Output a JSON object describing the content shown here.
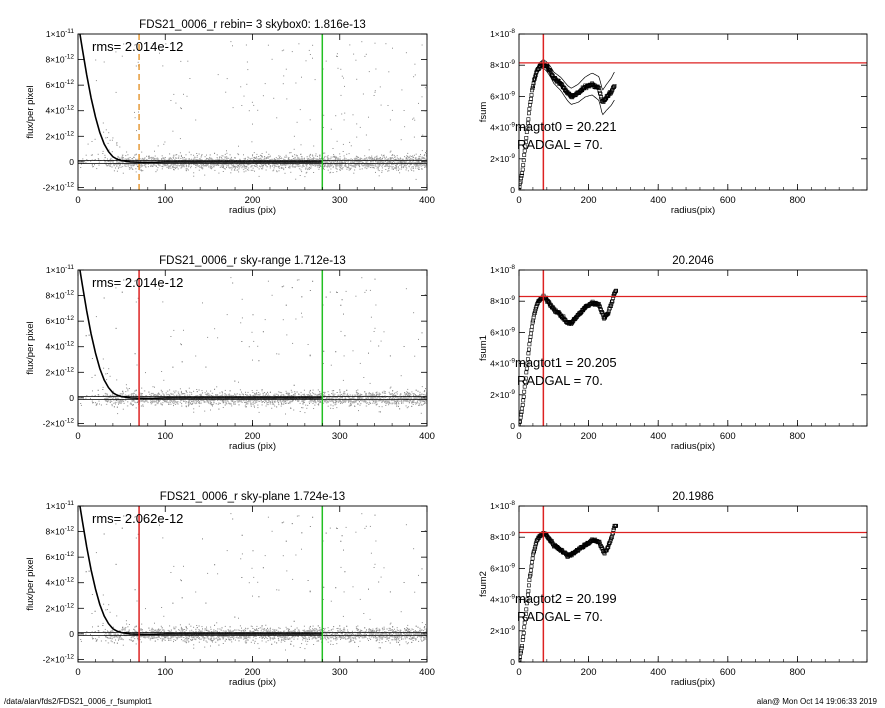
{
  "footer": {
    "path": "/data/alan/fds2/FDS21_0006_r_fsumplot1",
    "stamp": "alan@  Mon Oct 14 19:06:33 2019"
  },
  "chart_data": [
    {
      "id": "profile-1",
      "type": "scatter",
      "title": "FDS21_0006_r rebin= 3    skybox0:  1.816e-13",
      "xlabel": "radius (pix)",
      "ylabel": "flux/per pixel",
      "xlim": [
        0,
        400
      ],
      "ylim": [
        -2.2e-12,
        1e-11
      ],
      "xticks": [
        0,
        100,
        200,
        300,
        400
      ],
      "yticks": [
        {
          "v": 1e-11,
          "m": "1×10",
          "e": "-11"
        },
        {
          "v": 8e-12,
          "m": "8×10",
          "e": "-12"
        },
        {
          "v": 6e-12,
          "m": "6×10",
          "e": "-12"
        },
        {
          "v": 4e-12,
          "m": "4×10",
          "e": "-12"
        },
        {
          "v": 2e-12,
          "m": "2×10",
          "e": "-12"
        },
        {
          "v": 0,
          "m": "0",
          "e": ""
        },
        {
          "v": -2e-12,
          "m": "-2×10",
          "e": "-12"
        }
      ],
      "annotation": "rms= 2.014e-12",
      "marker_line": {
        "x": 70,
        "color": "#e69b3a",
        "style": "dashed"
      },
      "outer_line": {
        "x": 280,
        "color": "#22c022"
      },
      "profile": [
        [
          1,
          1.05e-11
        ],
        [
          5,
          8.8e-12
        ],
        [
          10,
          6.8e-12
        ],
        [
          15,
          5e-12
        ],
        [
          20,
          3.5e-12
        ],
        [
          25,
          2.3e-12
        ],
        [
          30,
          1.4e-12
        ],
        [
          35,
          8e-13
        ],
        [
          40,
          4e-13
        ],
        [
          45,
          2e-13
        ],
        [
          50,
          1e-13
        ],
        [
          60,
          0
        ],
        [
          80,
          -5e-14
        ],
        [
          100,
          0
        ],
        [
          150,
          0
        ],
        [
          200,
          0
        ],
        [
          250,
          0
        ],
        [
          280,
          0
        ]
      ],
      "sky_level": 1.816e-13
    },
    {
      "id": "fsum-0",
      "type": "scatter",
      "title": "",
      "xlabel": "radius(pix)",
      "ylabel": "fsum",
      "xlim": [
        0,
        1000
      ],
      "ylim": [
        0,
        1e-08
      ],
      "xticks": [
        0,
        200,
        400,
        600,
        800
      ],
      "yticks": [
        {
          "v": 1e-08,
          "m": "1×10",
          "e": "-8"
        },
        {
          "v": 8e-09,
          "m": "8×10",
          "e": "-9"
        },
        {
          "v": 6e-09,
          "m": "6×10",
          "e": "-9"
        },
        {
          "v": 4e-09,
          "m": "4×10",
          "e": "-9"
        },
        {
          "v": 2e-09,
          "m": "2×10",
          "e": "-9"
        },
        {
          "v": 0,
          "m": "0",
          "e": ""
        }
      ],
      "annotations": [
        "magtot0 =  20.221",
        "RADGAL =     70."
      ],
      "vline": {
        "x": 70,
        "color": "#dd2222"
      },
      "hline": {
        "y": 8.15e-09,
        "color": "#dd2222"
      },
      "curve": [
        [
          0,
          0
        ],
        [
          10,
          1.2e-09
        ],
        [
          20,
          3.2e-09
        ],
        [
          30,
          5.2e-09
        ],
        [
          40,
          6.7e-09
        ],
        [
          50,
          7.6e-09
        ],
        [
          60,
          7.95e-09
        ],
        [
          70,
          8.1e-09
        ],
        [
          80,
          7.9e-09
        ],
        [
          90,
          7.6e-09
        ],
        [
          100,
          7.2e-09
        ],
        [
          120,
          6.8e-09
        ],
        [
          140,
          6.2e-09
        ],
        [
          150,
          6e-09
        ],
        [
          170,
          6.2e-09
        ],
        [
          190,
          6.6e-09
        ],
        [
          210,
          6.8e-09
        ],
        [
          230,
          6.5e-09
        ],
        [
          240,
          5.6e-09
        ],
        [
          250,
          5.9e-09
        ],
        [
          265,
          6.3e-09
        ],
        [
          275,
          6.7e-09
        ]
      ],
      "envelope_spread": 9e-10
    },
    {
      "id": "profile-2",
      "type": "scatter",
      "title": "FDS21_0006_r sky-range  1.712e-13",
      "xlabel": "radius (pix)",
      "ylabel": "flux/per pixel",
      "xlim": [
        0,
        400
      ],
      "ylim": [
        -2.2e-12,
        1e-11
      ],
      "xticks": [
        0,
        100,
        200,
        300,
        400
      ],
      "yticks": [
        {
          "v": 1e-11,
          "m": "1×10",
          "e": "-11"
        },
        {
          "v": 8e-12,
          "m": "8×10",
          "e": "-12"
        },
        {
          "v": 6e-12,
          "m": "6×10",
          "e": "-12"
        },
        {
          "v": 4e-12,
          "m": "4×10",
          "e": "-12"
        },
        {
          "v": 2e-12,
          "m": "2×10",
          "e": "-12"
        },
        {
          "v": 0,
          "m": "0",
          "e": ""
        },
        {
          "v": -2e-12,
          "m": "-2×10",
          "e": "-12"
        }
      ],
      "annotation": "rms= 2.014e-12",
      "marker_line": {
        "x": 70,
        "color": "#dd2222",
        "style": "solid"
      },
      "outer_line": {
        "x": 280,
        "color": "#22c022"
      },
      "profile": [
        [
          1,
          1.05e-11
        ],
        [
          5,
          8.8e-12
        ],
        [
          10,
          6.8e-12
        ],
        [
          15,
          5e-12
        ],
        [
          20,
          3.5e-12
        ],
        [
          25,
          2.3e-12
        ],
        [
          30,
          1.4e-12
        ],
        [
          35,
          8e-13
        ],
        [
          40,
          4e-13
        ],
        [
          45,
          2e-13
        ],
        [
          50,
          1e-13
        ],
        [
          60,
          0
        ],
        [
          80,
          -5e-14
        ],
        [
          100,
          0
        ],
        [
          150,
          0
        ],
        [
          200,
          0
        ],
        [
          250,
          0
        ],
        [
          280,
          0
        ]
      ],
      "sky_level": 1.712e-13
    },
    {
      "id": "fsum-1",
      "type": "scatter",
      "title": "20.2046",
      "xlabel": "radius(pix)",
      "ylabel": "fsum1",
      "xlim": [
        0,
        1000
      ],
      "ylim": [
        0,
        1e-08
      ],
      "xticks": [
        0,
        200,
        400,
        600,
        800
      ],
      "yticks": [
        {
          "v": 1e-08,
          "m": "1×10",
          "e": "-8"
        },
        {
          "v": 8e-09,
          "m": "8×10",
          "e": "-9"
        },
        {
          "v": 6e-09,
          "m": "6×10",
          "e": "-9"
        },
        {
          "v": 4e-09,
          "m": "4×10",
          "e": "-9"
        },
        {
          "v": 2e-09,
          "m": "2×10",
          "e": "-9"
        },
        {
          "v": 0,
          "m": "0",
          "e": ""
        }
      ],
      "annotations": [
        "magtot1 =  20.205",
        "RADGAL =     70."
      ],
      "vline": {
        "x": 70,
        "color": "#dd2222"
      },
      "hline": {
        "y": 8.3e-09,
        "color": "#dd2222"
      },
      "curve": [
        [
          0,
          0
        ],
        [
          10,
          1.2e-09
        ],
        [
          20,
          3.2e-09
        ],
        [
          30,
          5.2e-09
        ],
        [
          40,
          6.8e-09
        ],
        [
          50,
          7.7e-09
        ],
        [
          60,
          8.1e-09
        ],
        [
          70,
          8.25e-09
        ],
        [
          80,
          8.1e-09
        ],
        [
          90,
          7.8e-09
        ],
        [
          100,
          7.5e-09
        ],
        [
          120,
          7.1e-09
        ],
        [
          140,
          6.6e-09
        ],
        [
          150,
          6.6e-09
        ],
        [
          170,
          7.1e-09
        ],
        [
          190,
          7.6e-09
        ],
        [
          210,
          7.9e-09
        ],
        [
          230,
          7.8e-09
        ],
        [
          245,
          6.9e-09
        ],
        [
          255,
          7.2e-09
        ],
        [
          265,
          7.8e-09
        ],
        [
          275,
          8.6e-09
        ],
        [
          280,
          8.7e-09
        ]
      ]
    },
    {
      "id": "profile-3",
      "type": "scatter",
      "title": "FDS21_0006_r sky-plane  1.724e-13",
      "xlabel": "radius (pix)",
      "ylabel": "flux/per pixel",
      "xlim": [
        0,
        400
      ],
      "ylim": [
        -2.2e-12,
        1e-11
      ],
      "xticks": [
        0,
        100,
        200,
        300,
        400
      ],
      "yticks": [
        {
          "v": 1e-11,
          "m": "1×10",
          "e": "-11"
        },
        {
          "v": 8e-12,
          "m": "8×10",
          "e": "-12"
        },
        {
          "v": 6e-12,
          "m": "6×10",
          "e": "-12"
        },
        {
          "v": 4e-12,
          "m": "4×10",
          "e": "-12"
        },
        {
          "v": 2e-12,
          "m": "2×10",
          "e": "-12"
        },
        {
          "v": 0,
          "m": "0",
          "e": ""
        },
        {
          "v": -2e-12,
          "m": "-2×10",
          "e": "-12"
        }
      ],
      "annotation": "rms= 2.062e-12",
      "marker_line": {
        "x": 70,
        "color": "#dd2222",
        "style": "solid"
      },
      "outer_line": {
        "x": 280,
        "color": "#22c022"
      },
      "profile": [
        [
          1,
          1.05e-11
        ],
        [
          5,
          8.8e-12
        ],
        [
          10,
          6.8e-12
        ],
        [
          15,
          5e-12
        ],
        [
          20,
          3.5e-12
        ],
        [
          25,
          2.3e-12
        ],
        [
          30,
          1.4e-12
        ],
        [
          35,
          8e-13
        ],
        [
          40,
          4e-13
        ],
        [
          45,
          2e-13
        ],
        [
          50,
          1e-13
        ],
        [
          60,
          0
        ],
        [
          80,
          -5e-14
        ],
        [
          100,
          0
        ],
        [
          150,
          0
        ],
        [
          200,
          0
        ],
        [
          250,
          0
        ],
        [
          280,
          0
        ]
      ],
      "sky_level": 1.724e-13
    },
    {
      "id": "fsum-2",
      "type": "scatter",
      "title": "20.1986",
      "xlabel": "radius(pix)",
      "ylabel": "fsum2",
      "xlim": [
        0,
        1000
      ],
      "ylim": [
        0,
        1e-08
      ],
      "xticks": [
        0,
        200,
        400,
        600,
        800
      ],
      "yticks": [
        {
          "v": 1e-08,
          "m": "1×10",
          "e": "-8"
        },
        {
          "v": 8e-09,
          "m": "8×10",
          "e": "-9"
        },
        {
          "v": 6e-09,
          "m": "6×10",
          "e": "-9"
        },
        {
          "v": 4e-09,
          "m": "4×10",
          "e": "-9"
        },
        {
          "v": 2e-09,
          "m": "2×10",
          "e": "-9"
        },
        {
          "v": 0,
          "m": "0",
          "e": ""
        }
      ],
      "annotations": [
        "magtot2 =  20.199",
        "RADGAL =     70."
      ],
      "vline": {
        "x": 70,
        "color": "#dd2222"
      },
      "hline": {
        "y": 8.3e-09,
        "color": "#dd2222"
      },
      "curve": [
        [
          0,
          0
        ],
        [
          10,
          1.2e-09
        ],
        [
          20,
          3.2e-09
        ],
        [
          30,
          5.2e-09
        ],
        [
          40,
          6.8e-09
        ],
        [
          50,
          7.7e-09
        ],
        [
          60,
          8.1e-09
        ],
        [
          70,
          8.25e-09
        ],
        [
          80,
          8.1e-09
        ],
        [
          90,
          7.8e-09
        ],
        [
          100,
          7.5e-09
        ],
        [
          120,
          7.2e-09
        ],
        [
          140,
          6.8e-09
        ],
        [
          150,
          6.9e-09
        ],
        [
          170,
          7.2e-09
        ],
        [
          190,
          7.5e-09
        ],
        [
          210,
          7.8e-09
        ],
        [
          230,
          7.7e-09
        ],
        [
          245,
          7e-09
        ],
        [
          255,
          7.3e-09
        ],
        [
          265,
          7.9e-09
        ],
        [
          275,
          8.7e-09
        ],
        [
          280,
          8.8e-09
        ]
      ]
    }
  ]
}
